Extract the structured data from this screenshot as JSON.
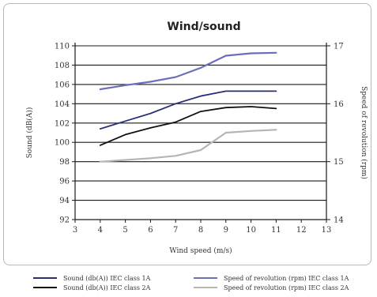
{
  "chart_data": {
    "type": "line",
    "title": "Wind/sound",
    "xlabel": "Wind speed (m/s)",
    "ylabel_left": "Sound (dB(A))",
    "ylabel_right": "Speed of revolution (rpm)",
    "xlim": [
      3,
      13
    ],
    "ylim_left": [
      92,
      110
    ],
    "ylim_right": [
      14,
      17
    ],
    "x_ticks": [
      "3",
      "4",
      "5",
      "6",
      "7",
      "8",
      "9",
      "10",
      "11",
      "12",
      "13"
    ],
    "y_ticks_left": [
      "92",
      "94",
      "96",
      "98",
      "100",
      "102",
      "104",
      "106",
      "108",
      "110"
    ],
    "y_ticks_right": [
      "14",
      "15",
      "16",
      "17"
    ],
    "grid": true,
    "legend_position": "bottom",
    "series": [
      {
        "name": "Sound (db(A)) IEC class 1A",
        "axis": "left",
        "color": "#2b2f7a",
        "x": [
          4,
          5,
          6,
          7,
          8,
          9,
          10,
          11
        ],
        "values": [
          101.4,
          102.2,
          103.0,
          104.0,
          104.8,
          105.3,
          105.3,
          105.3
        ]
      },
      {
        "name": "Sound (db(A)) IEC class 2A",
        "axis": "left",
        "color": "#111111",
        "x": [
          4,
          5,
          6,
          7,
          8,
          9,
          10,
          11
        ],
        "values": [
          99.7,
          100.8,
          101.5,
          102.1,
          103.2,
          103.6,
          103.7,
          103.5
        ]
      },
      {
        "name": "Speed of revolution (rpm) IEC class 1A",
        "axis": "right",
        "color": "#6b6eb8",
        "x": [
          4,
          5,
          6,
          7,
          8,
          9,
          10,
          11
        ],
        "values": [
          16.25,
          16.32,
          16.38,
          16.46,
          16.62,
          16.83,
          16.87,
          16.88
        ]
      },
      {
        "name": "Speed of revolution (rpm) IEC class 2A",
        "axis": "right",
        "color": "#b5b5b5",
        "x": [
          4,
          5,
          6,
          7,
          8,
          9,
          10,
          11
        ],
        "values": [
          15.0,
          15.03,
          15.06,
          15.1,
          15.2,
          15.5,
          15.53,
          15.55
        ]
      }
    ]
  }
}
